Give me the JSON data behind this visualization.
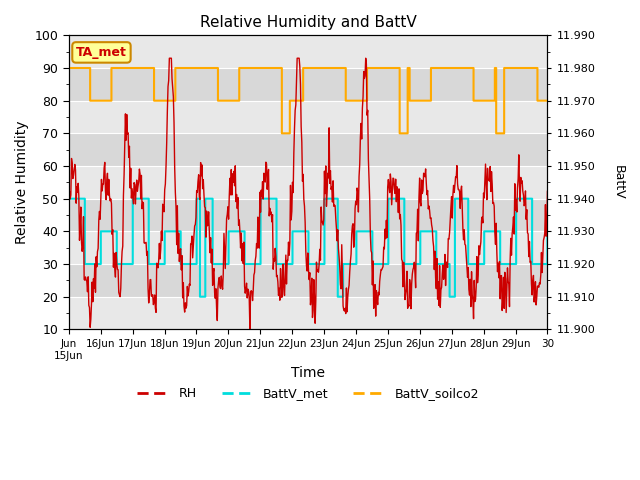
{
  "title": "Relative Humidity and BattV",
  "xlabel": "Time",
  "ylabel_left": "Relative Humidity",
  "ylabel_right": "BattV",
  "ylim_left": [
    10,
    100
  ],
  "ylim_right": [
    11.9,
    11.99
  ],
  "yticks_left": [
    10,
    20,
    30,
    40,
    50,
    60,
    70,
    80,
    90,
    100
  ],
  "yticks_right": [
    11.9,
    11.91,
    11.92,
    11.93,
    11.94,
    11.95,
    11.96,
    11.97,
    11.98,
    11.99
  ],
  "xtick_labels": [
    "Jun\n15Jun",
    "16Jun",
    "17Jun",
    "18Jun",
    "19Jun",
    "20Jun",
    "21Jun",
    "22Jun",
    "23Jun",
    "24Jun",
    "25Jun",
    "26Jun",
    "27Jun",
    "28Jun",
    "29Jun",
    "30"
  ],
  "background_color": "#ffffff",
  "plot_bg_color": "#e8e8e8",
  "annotation_box": {
    "text": "TA_met",
    "facecolor": "#ffff99",
    "edgecolor": "#cc8800"
  },
  "legend": [
    {
      "label": "RH",
      "color": "#cc0000"
    },
    {
      "label": "BattV_met",
      "color": "#00dddd"
    },
    {
      "label": "BattV_soilco2",
      "color": "#ffaa00"
    }
  ],
  "rh_color": "#cc0000",
  "battv_met_color": "#00dddd",
  "battv_soilco2_color": "#ffaa00",
  "grid_color": "#ffffff",
  "n_days": 15,
  "battv_met_low": 30,
  "battv_met_mid": 50,
  "battv_met_vlow": 20,
  "battv_soilco2_low": 80,
  "battv_soilco2_high": 90,
  "battv_soilco2_vlow": 70,
  "band_colors": [
    "#e8e8e8",
    "#d8d8d8"
  ]
}
